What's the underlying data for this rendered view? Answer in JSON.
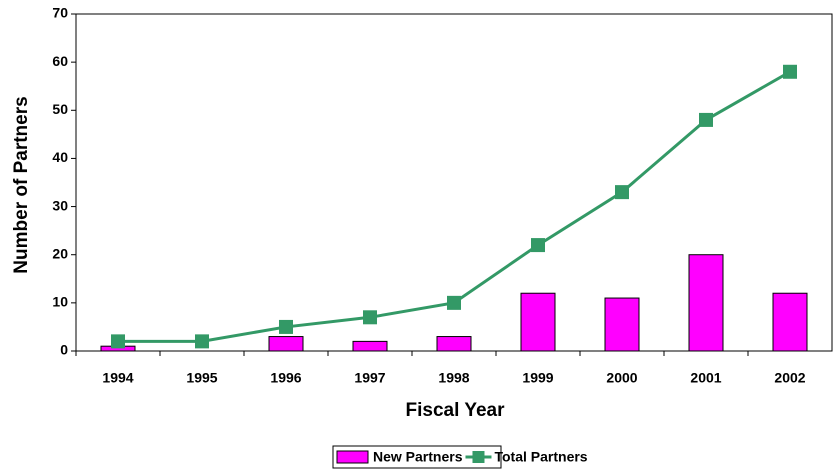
{
  "chart_data": {
    "type": "combo",
    "x_label": "Fiscal Year",
    "y_label": "Number of Partners",
    "categories": [
      "1994",
      "1995",
      "1996",
      "1997",
      "1998",
      "1999",
      "2000",
      "2001",
      "2002"
    ],
    "series": [
      {
        "name": "New Partners",
        "type": "bar",
        "color": "#ff00ff",
        "values": [
          1,
          0,
          3,
          2,
          3,
          12,
          11,
          20,
          12
        ]
      },
      {
        "name": "Total Partners",
        "type": "line",
        "color": "#339966",
        "values": [
          2,
          2,
          5,
          7,
          10,
          22,
          33,
          48,
          58
        ]
      }
    ],
    "ylim": [
      0,
      70
    ],
    "yticks": [
      0,
      10,
      20,
      30,
      40,
      50,
      60,
      70
    ],
    "grid": false,
    "legend": "bottom"
  }
}
